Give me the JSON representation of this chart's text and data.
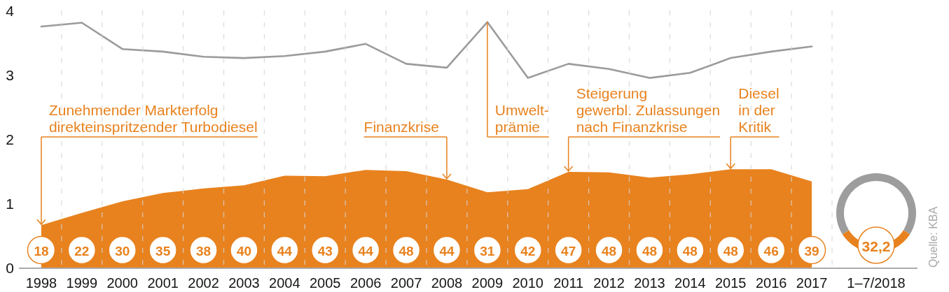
{
  "chart_data": [
    {
      "type": "area",
      "categories": [
        "1998",
        "1999",
        "2000",
        "2001",
        "2002",
        "2003",
        "2004",
        "2005",
        "2006",
        "2007",
        "2008",
        "2009",
        "2010",
        "2011",
        "2012",
        "2013",
        "2014",
        "2015",
        "2016",
        "2017"
      ],
      "series": [
        {
          "color": "#e8821e",
          "values": [
            0.66,
            0.85,
            1.03,
            1.16,
            1.23,
            1.28,
            1.43,
            1.42,
            1.52,
            1.5,
            1.37,
            1.17,
            1.22,
            1.49,
            1.48,
            1.4,
            1.45,
            1.53,
            1.53,
            1.34
          ]
        },
        {
          "type": "line",
          "color": "#9b9b9b",
          "values": [
            3.75,
            3.81,
            3.4,
            3.36,
            3.28,
            3.26,
            3.29,
            3.36,
            3.48,
            3.17,
            3.11,
            3.82,
            2.95,
            3.17,
            3.09,
            2.95,
            3.03,
            3.26,
            3.36,
            3.44
          ]
        }
      ],
      "ylim": [
        0,
        4
      ],
      "yticks": [
        0,
        1,
        2,
        3,
        4
      ],
      "grid": "x",
      "annotations": [
        {
          "text": "Zunehmender Markterfolg\ndirekteinspritzender Turbodiesel",
          "x": "1998",
          "y": 0.66
        },
        {
          "text": "Finanzkrise",
          "x": "2008",
          "y": 1.37
        },
        {
          "text": "Umwelt-\nprämie",
          "x": "2009",
          "y": 3.82
        },
        {
          "text": "Steigerung\ngewerbl. Zulassungen\nnach Finanzkrise",
          "x": "2011",
          "y": 1.49
        },
        {
          "text": "Diesel\nin der\nKritik",
          "x": "2015",
          "y": 1.53
        },
        {
          "text": "18",
          "x": "1998"
        },
        {
          "text": "22",
          "x": "1999"
        },
        {
          "text": "30",
          "x": "2000"
        },
        {
          "text": "35",
          "x": "2001"
        },
        {
          "text": "38",
          "x": "2002"
        },
        {
          "text": "40",
          "x": "2003"
        },
        {
          "text": "44",
          "x": "2004"
        },
        {
          "text": "43",
          "x": "2005"
        },
        {
          "text": "44",
          "x": "2006"
        },
        {
          "text": "48",
          "x": "2007"
        },
        {
          "text": "44",
          "x": "2008"
        },
        {
          "text": "31",
          "x": "2009"
        },
        {
          "text": "42",
          "x": "2010"
        },
        {
          "text": "47",
          "x": "2011"
        },
        {
          "text": "48",
          "x": "2012"
        },
        {
          "text": "48",
          "x": "2013"
        },
        {
          "text": "48",
          "x": "2014"
        },
        {
          "text": "48",
          "x": "2015"
        },
        {
          "text": "46",
          "x": "2016"
        },
        {
          "text": "39",
          "x": "2017"
        }
      ]
    },
    {
      "type": "donut",
      "categories": [
        null,
        null
      ],
      "values": [
        32.2,
        67.8
      ],
      "colors": [
        "#e8821e",
        "#9d9d9d"
      ],
      "value_labels": [
        "32,2",
        null
      ],
      "xlabel": "1–7/2018",
      "annotations": [
        "Quelle: KBA"
      ]
    }
  ]
}
